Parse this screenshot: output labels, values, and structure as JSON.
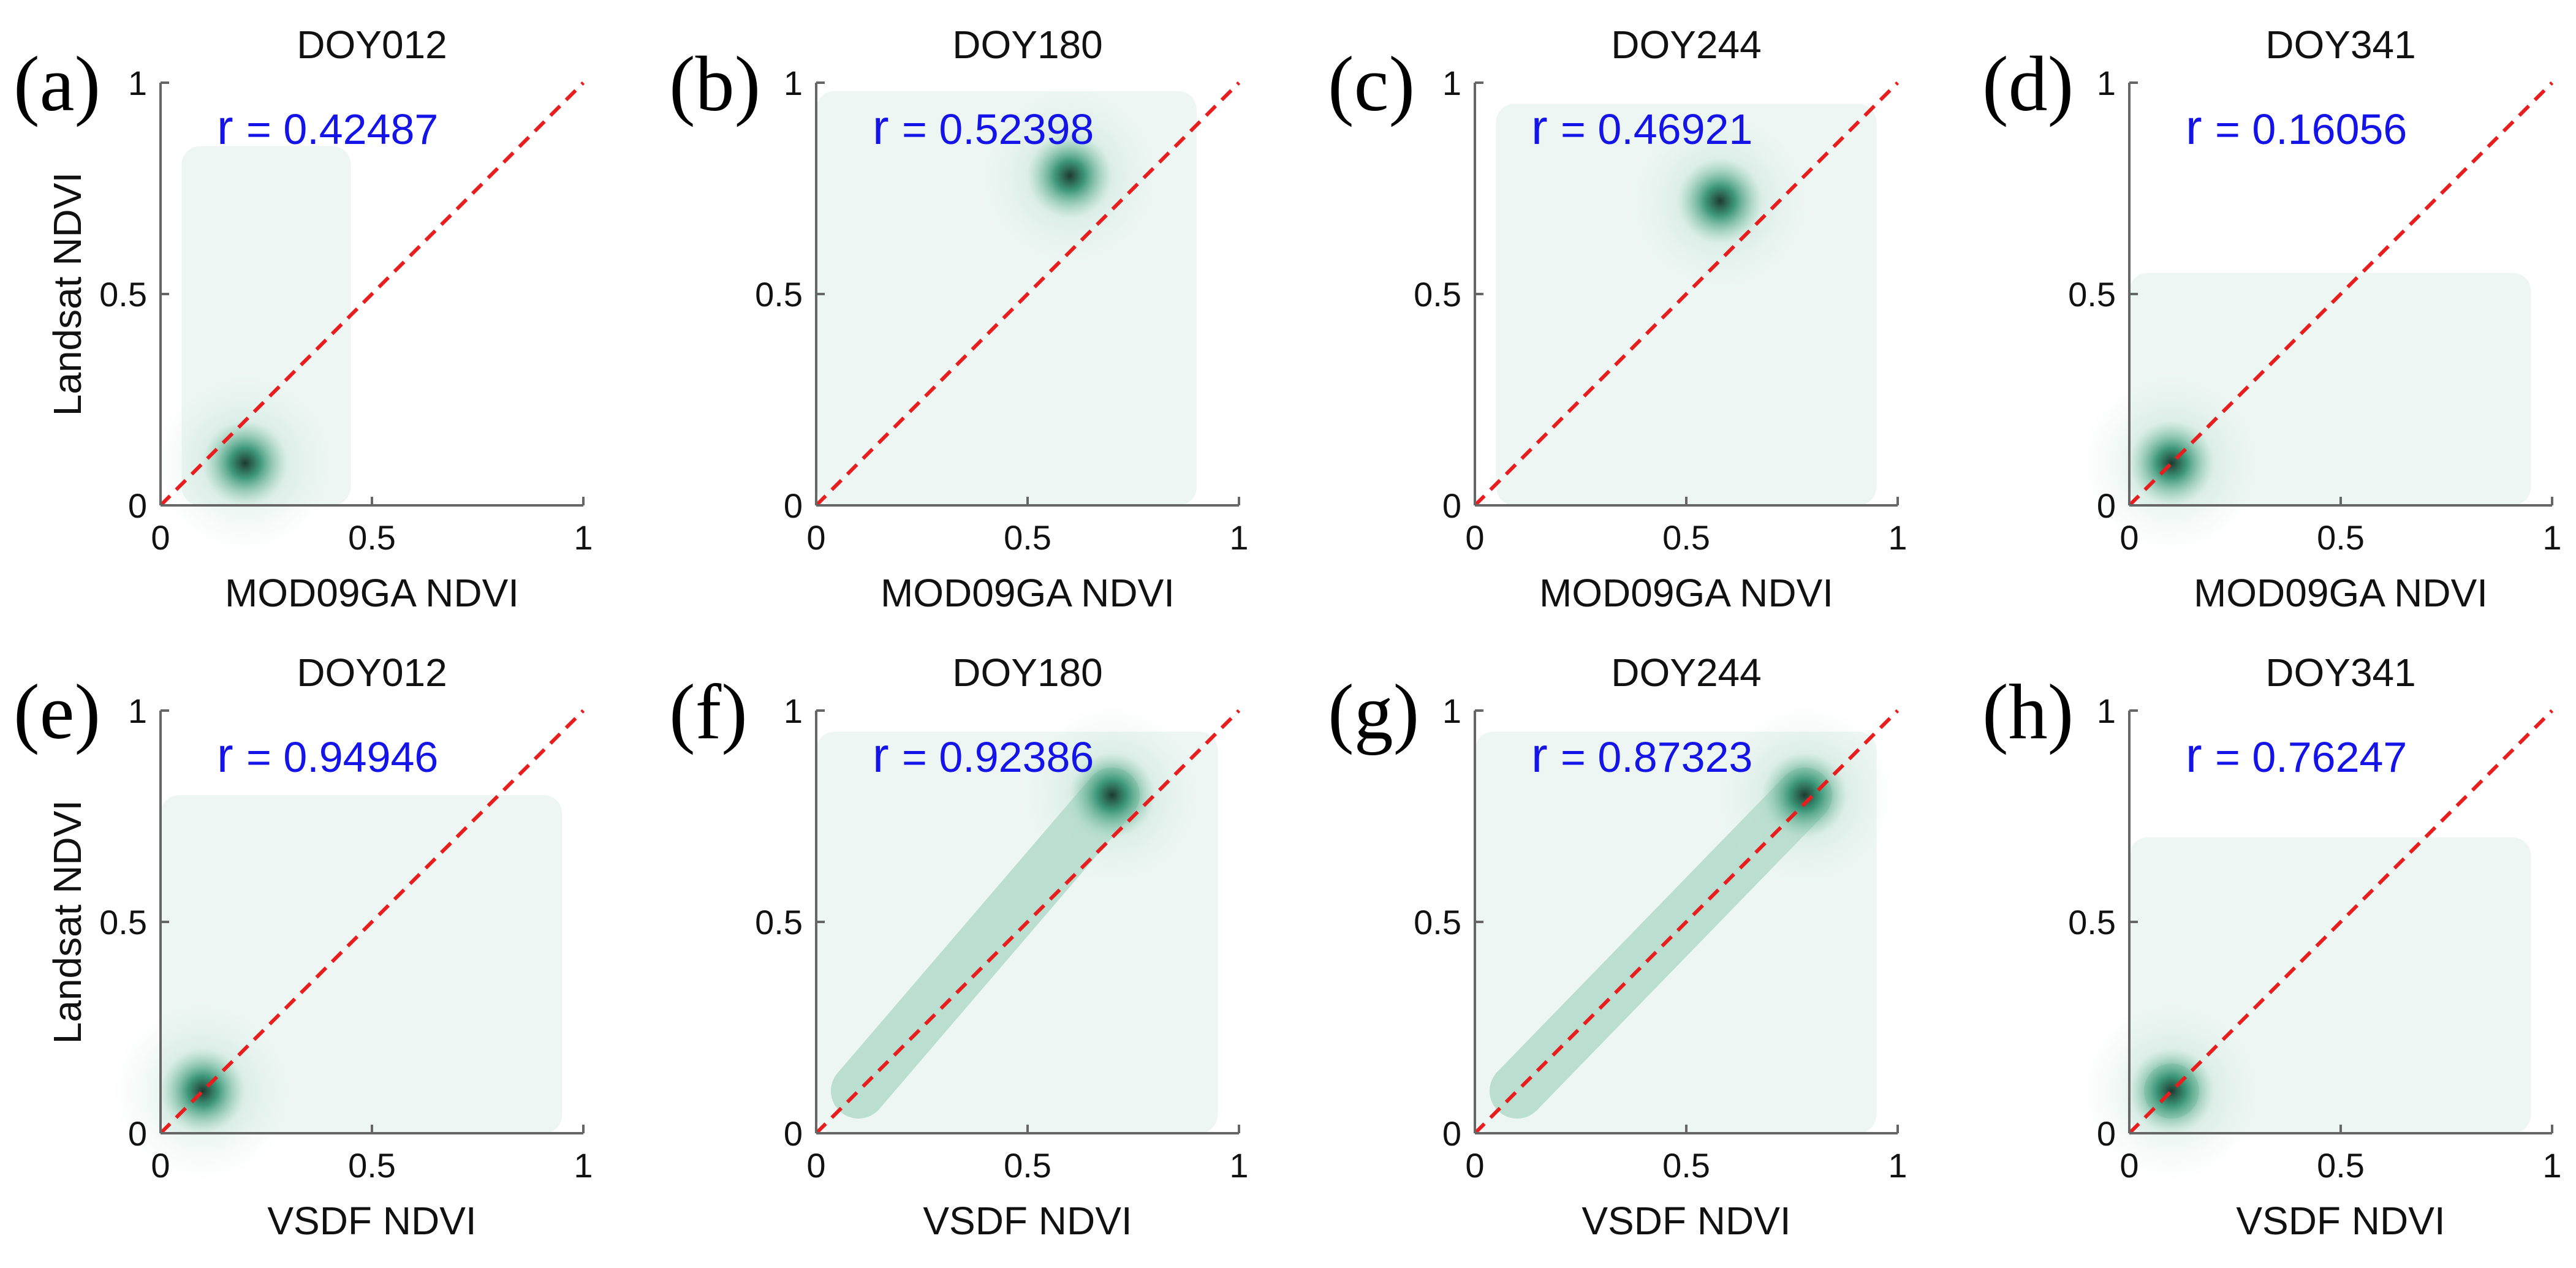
{
  "chart_data": [
    {
      "type": "scatter",
      "panel": "(a)",
      "title": "DOY012",
      "xlabel": "MOD09GA NDVI",
      "ylabel": "Landsat NDVI",
      "r_label": "r",
      "r_value": "= 0.42487",
      "xlim": [
        0,
        1
      ],
      "ylim": [
        0,
        1
      ],
      "xticks": [
        "0",
        "0.5",
        "1"
      ],
      "yticks": [
        "0",
        "0.5",
        "1"
      ],
      "reference_line": "1:1",
      "cluster_x_range": [
        0.05,
        0.45
      ],
      "cluster_y_range": [
        0.0,
        0.85
      ],
      "density_peak": [
        0.2,
        0.1
      ]
    },
    {
      "type": "scatter",
      "panel": "(b)",
      "title": "DOY180",
      "xlabel": "MOD09GA NDVI",
      "ylabel": "",
      "r_label": "r",
      "r_value": "= 0.52398",
      "xlim": [
        0,
        1
      ],
      "ylim": [
        0,
        1
      ],
      "xticks": [
        "0",
        "0.5",
        "1"
      ],
      "yticks": [
        "0",
        "0.5",
        "1"
      ],
      "reference_line": "1:1",
      "cluster_x_range": [
        0.0,
        0.9
      ],
      "cluster_y_range": [
        0.0,
        0.98
      ],
      "density_peak": [
        0.6,
        0.78
      ]
    },
    {
      "type": "scatter",
      "panel": "(c)",
      "title": "DOY244",
      "xlabel": "MOD09GA NDVI",
      "ylabel": "",
      "r_label": "r",
      "r_value": "= 0.46921",
      "xlim": [
        0,
        1
      ],
      "ylim": [
        0,
        1
      ],
      "xticks": [
        "0",
        "0.5",
        "1"
      ],
      "yticks": [
        "0",
        "0.5",
        "1"
      ],
      "reference_line": "1:1",
      "cluster_x_range": [
        0.05,
        0.95
      ],
      "cluster_y_range": [
        0.0,
        0.95
      ],
      "density_peak": [
        0.58,
        0.72
      ]
    },
    {
      "type": "scatter",
      "panel": "(d)",
      "title": "DOY341",
      "xlabel": "MOD09GA NDVI",
      "ylabel": "",
      "r_label": "r",
      "r_value": "= 0.16056",
      "xlim": [
        0,
        1
      ],
      "ylim": [
        0,
        1
      ],
      "xticks": [
        "0",
        "0.5",
        "1"
      ],
      "yticks": [
        "0",
        "0.5",
        "1"
      ],
      "reference_line": "1:1",
      "cluster_x_range": [
        0.0,
        0.95
      ],
      "cluster_y_range": [
        0.0,
        0.55
      ],
      "density_peak": [
        0.1,
        0.1
      ]
    },
    {
      "type": "scatter",
      "panel": "(e)",
      "title": "DOY012",
      "xlabel": "VSDF NDVI",
      "ylabel": "Landsat NDVI",
      "r_label": "r",
      "r_value": "= 0.94946",
      "xlim": [
        0,
        1
      ],
      "ylim": [
        0,
        1
      ],
      "xticks": [
        "0",
        "0.5",
        "1"
      ],
      "yticks": [
        "0",
        "0.5",
        "1"
      ],
      "reference_line": "1:1",
      "cluster_x_range": [
        0.0,
        0.95
      ],
      "cluster_y_range": [
        0.0,
        0.8
      ],
      "density_peak": [
        0.1,
        0.1
      ]
    },
    {
      "type": "scatter",
      "panel": "(f)",
      "title": "DOY180",
      "xlabel": "VSDF NDVI",
      "ylabel": "",
      "r_label": "r",
      "r_value": "= 0.92386",
      "xlim": [
        0,
        1
      ],
      "ylim": [
        0,
        1
      ],
      "xticks": [
        "0",
        "0.5",
        "1"
      ],
      "yticks": [
        "0",
        "0.5",
        "1"
      ],
      "reference_line": "1:1",
      "cluster_x_range": [
        0.0,
        0.95
      ],
      "cluster_y_range": [
        0.0,
        0.95
      ],
      "density_peak": [
        0.7,
        0.8
      ]
    },
    {
      "type": "scatter",
      "panel": "(g)",
      "title": "DOY244",
      "xlabel": "VSDF NDVI",
      "ylabel": "",
      "r_label": "r",
      "r_value": "= 0.87323",
      "xlim": [
        0,
        1
      ],
      "ylim": [
        0,
        1
      ],
      "xticks": [
        "0",
        "0.5",
        "1"
      ],
      "yticks": [
        "0",
        "0.5",
        "1"
      ],
      "reference_line": "1:1",
      "cluster_x_range": [
        0.0,
        0.95
      ],
      "cluster_y_range": [
        0.0,
        0.95
      ],
      "density_peak": [
        0.78,
        0.8
      ]
    },
    {
      "type": "scatter",
      "panel": "(h)",
      "title": "DOY341",
      "xlabel": "VSDF NDVI",
      "ylabel": "",
      "r_label": "r",
      "r_value": "= 0.76247",
      "xlim": [
        0,
        1
      ],
      "ylim": [
        0,
        1
      ],
      "xticks": [
        "0",
        "0.5",
        "1"
      ],
      "yticks": [
        "0",
        "0.5",
        "1"
      ],
      "reference_line": "1:1",
      "cluster_x_range": [
        0.0,
        0.95
      ],
      "cluster_y_range": [
        0.0,
        0.7
      ],
      "density_peak": [
        0.1,
        0.1
      ]
    }
  ],
  "colors": {
    "reference_line": "#e81e1e",
    "r_text": "#1414e8",
    "density_low": "#dfeeea",
    "density_mid": "#8fcbb2",
    "density_high": "#2f8f70",
    "density_peak": "#1e3a30"
  }
}
